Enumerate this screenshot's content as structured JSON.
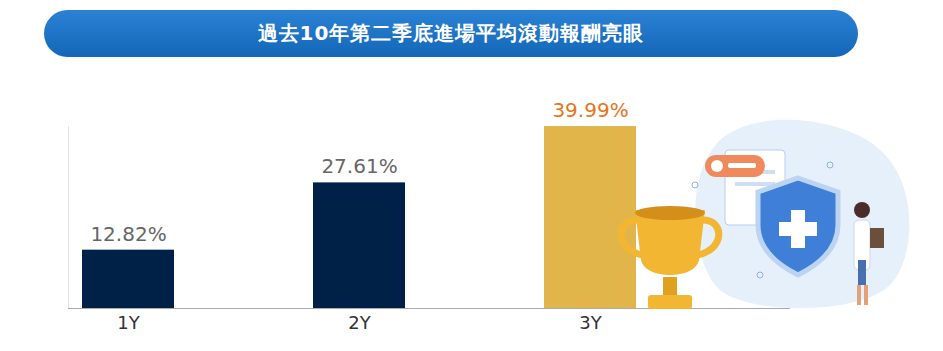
{
  "chart_data": {
    "type": "bar",
    "title": "過去10年第二季底進場平均滾動報酬亮眼",
    "categories": [
      "1Y",
      "2Y",
      "3Y"
    ],
    "values": [
      12.82,
      27.61,
      39.99
    ],
    "value_labels": [
      "12.82%",
      "27.61%",
      "39.99%"
    ],
    "colors": [
      "#002147",
      "#002147",
      "#e2b54b"
    ],
    "ylim": [
      0,
      40
    ],
    "yticks": [
      0
    ],
    "grid": false,
    "data_labels": true,
    "tick_labels": "x"
  }
}
